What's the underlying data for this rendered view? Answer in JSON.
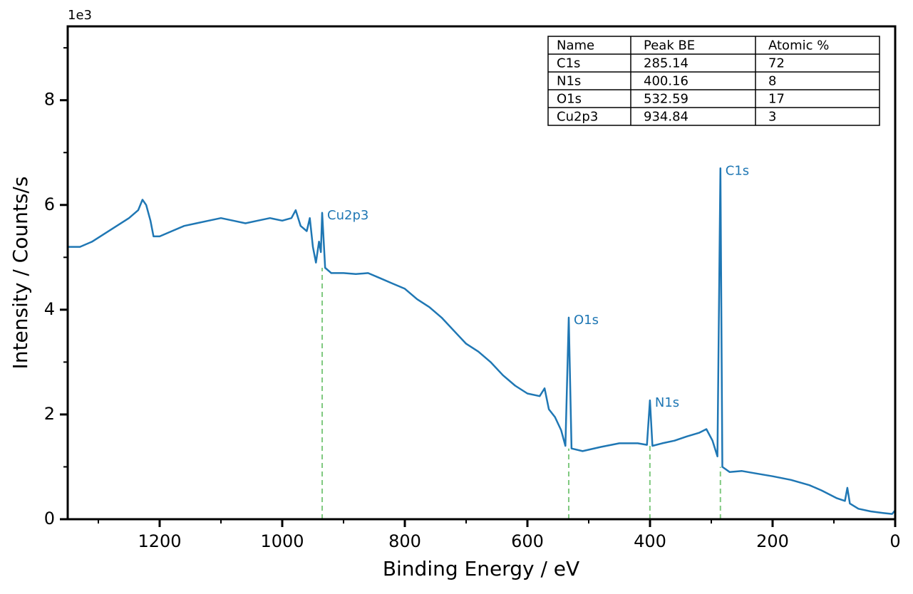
{
  "chart_data": {
    "type": "line",
    "xlabel": "Binding Energy / eV",
    "ylabel": "Intensity / Counts/s",
    "offset_label": "1e3",
    "xlim": [
      1350,
      0
    ],
    "ylim": [
      0,
      9.41
    ],
    "xticks": [
      1200,
      1000,
      800,
      600,
      400,
      200,
      0
    ],
    "yticks": [
      0,
      2,
      4,
      6,
      8
    ],
    "x": [
      1350,
      1330,
      1310,
      1290,
      1270,
      1250,
      1235,
      1228,
      1222,
      1215,
      1210,
      1200,
      1180,
      1160,
      1140,
      1120,
      1100,
      1080,
      1060,
      1040,
      1020,
      1000,
      985,
      978,
      970,
      960,
      955,
      950,
      945,
      940,
      937,
      934.84,
      930,
      920,
      900,
      880,
      860,
      840,
      820,
      800,
      780,
      760,
      740,
      720,
      700,
      680,
      660,
      640,
      620,
      600,
      580,
      572,
      565,
      555,
      545,
      538,
      532.59,
      528,
      510,
      480,
      450,
      420,
      405,
      400.16,
      396,
      380,
      360,
      340,
      320,
      308,
      298,
      290,
      285.14,
      282,
      270,
      250,
      230,
      200,
      170,
      140,
      120,
      95,
      82,
      78,
      74,
      60,
      40,
      20,
      5,
      0
    ],
    "series": [
      {
        "color": "#1f77b4",
        "values": [
          5.2,
          5.2,
          5.3,
          5.45,
          5.6,
          5.75,
          5.9,
          6.1,
          6.0,
          5.7,
          5.4,
          5.4,
          5.5,
          5.6,
          5.65,
          5.7,
          5.75,
          5.7,
          5.65,
          5.7,
          5.75,
          5.7,
          5.75,
          5.9,
          5.6,
          5.5,
          5.75,
          5.2,
          4.9,
          5.3,
          5.1,
          5.85,
          4.8,
          4.7,
          4.7,
          4.68,
          4.7,
          4.6,
          4.5,
          4.4,
          4.2,
          4.05,
          3.85,
          3.6,
          3.35,
          3.2,
          3.0,
          2.75,
          2.55,
          2.4,
          2.35,
          2.5,
          2.1,
          1.95,
          1.7,
          1.4,
          3.85,
          1.35,
          1.3,
          1.38,
          1.45,
          1.45,
          1.42,
          2.27,
          1.4,
          1.45,
          1.5,
          1.58,
          1.65,
          1.72,
          1.5,
          1.2,
          6.7,
          1.0,
          0.9,
          0.92,
          0.88,
          0.82,
          0.75,
          0.65,
          0.55,
          0.4,
          0.35,
          0.6,
          0.3,
          0.2,
          0.15,
          0.12,
          0.1,
          0.17
        ]
      }
    ],
    "marker_color": "#7fc97f"
  },
  "table": {
    "columns": [
      "Name",
      "Peak BE",
      "Atomic %"
    ],
    "rows": [
      [
        "C1s",
        285.14,
        72
      ],
      [
        "N1s",
        400.16,
        8
      ],
      [
        "O1s",
        532.59,
        17
      ],
      [
        "Cu2p3",
        934.84,
        3
      ]
    ]
  }
}
